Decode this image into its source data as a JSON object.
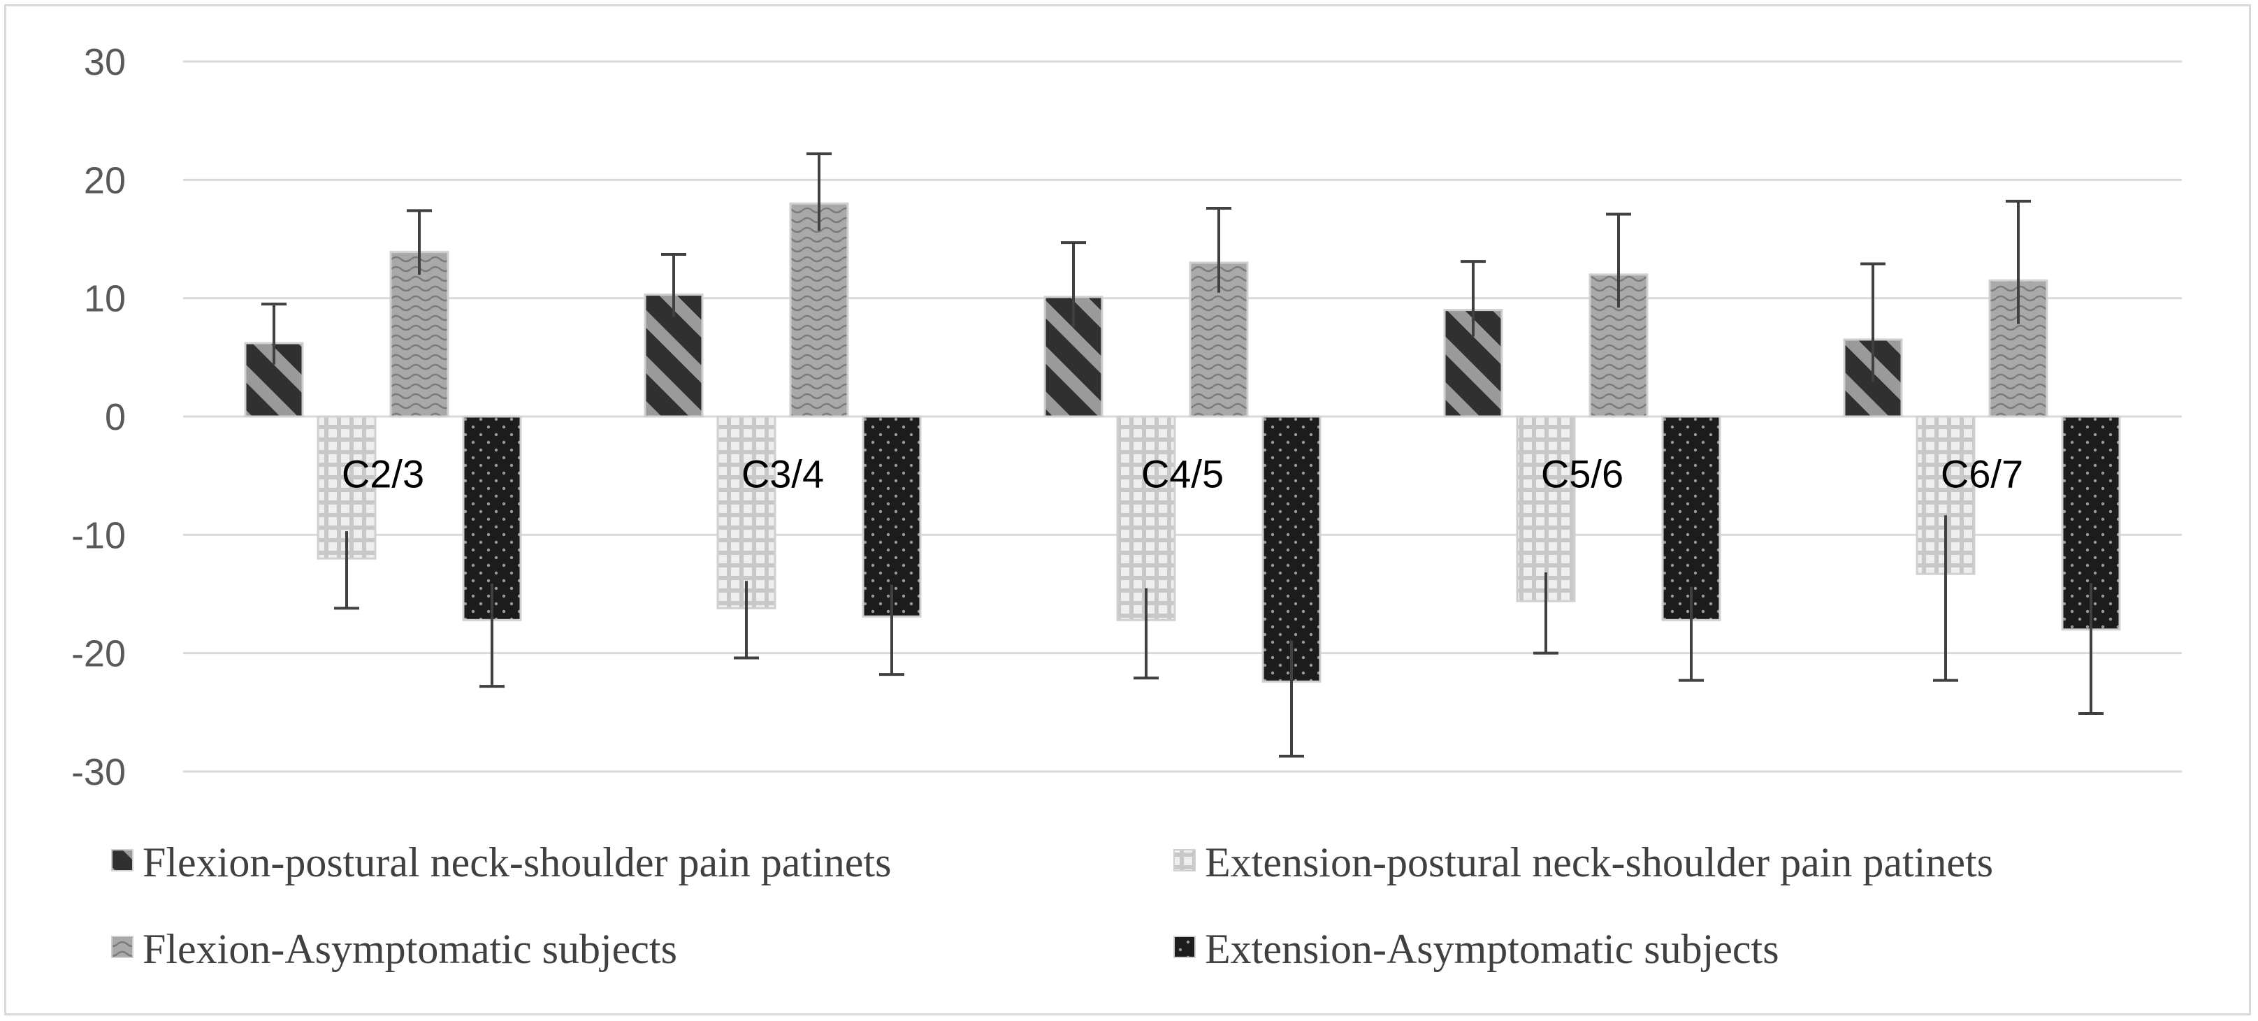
{
  "chart_data": {
    "type": "bar",
    "title": "",
    "xlabel": "",
    "ylabel": "",
    "ylim": [
      -30,
      30
    ],
    "yticks": [
      30,
      20,
      10,
      0,
      -10,
      -20,
      -30
    ],
    "grid": true,
    "legend_position": "bottom",
    "categories": [
      "C2/3",
      "C3/4",
      "C4/5",
      "C5/6",
      "C6/7"
    ],
    "series": [
      {
        "name": "Flexion-postural neck-shoulder pain patinets",
        "pattern": "diagonal",
        "values": [
          6.2,
          10.3,
          10.1,
          9.0,
          6.5
        ],
        "err": [
          3.3,
          3.4,
          4.6,
          4.1,
          6.4
        ]
      },
      {
        "name": "Extension-postural neck-shoulder pain patinets",
        "pattern": "grid",
        "values": [
          -12.0,
          -16.2,
          -17.2,
          -15.6,
          -13.3
        ],
        "err": [
          4.2,
          4.2,
          4.9,
          4.4,
          9.0
        ]
      },
      {
        "name": "Flexion-Asymptomatic subjects",
        "pattern": "wave",
        "values": [
          13.9,
          18.0,
          13.0,
          12.0,
          11.5
        ],
        "err": [
          3.5,
          4.2,
          4.6,
          5.1,
          6.7
        ]
      },
      {
        "name": "Extension-Asymptomatic subjects",
        "pattern": "dots",
        "values": [
          -17.2,
          -16.9,
          -22.4,
          -17.2,
          -18.0
        ],
        "err": [
          5.6,
          4.9,
          6.3,
          5.1,
          7.1
        ]
      }
    ],
    "colors": {
      "grid": "#d9d9d9",
      "error_bar": "#404040",
      "bar_outline": "#d0d0d0"
    }
  }
}
